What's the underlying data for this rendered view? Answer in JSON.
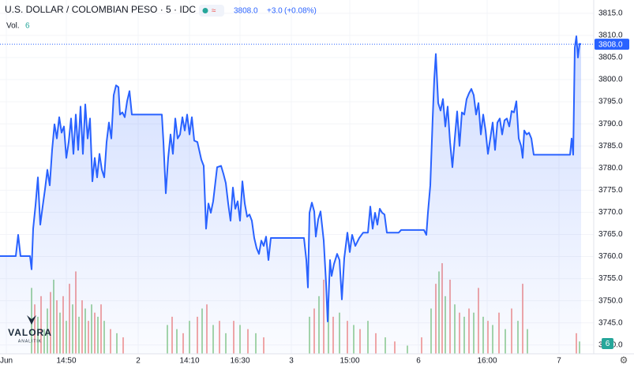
{
  "chart_data": {
    "type": "line",
    "title": "U.S. DOLLAR / COLOMBIAN PESO · 5 · IDC",
    "quote": {
      "last": "3808.0",
      "change": "+3.0",
      "change_pct": "(+0.08%)"
    },
    "volume_title": "Vol.",
    "volume_last": "6",
    "logo": {
      "name": "VALORA",
      "sub": "ANALITIK"
    },
    "color": "#2962ff",
    "grid": true,
    "xlim": [
      0,
      752
    ],
    "ylim": [
      3738,
      3818
    ],
    "yticks": [
      {
        "value": 3740,
        "label": "3740.0"
      },
      {
        "value": 3745,
        "label": "3745.0"
      },
      {
        "value": 3750,
        "label": "3750.0"
      },
      {
        "value": 3755,
        "label": "3755.0"
      },
      {
        "value": 3760,
        "label": "3760.0"
      },
      {
        "value": 3765,
        "label": "3765.0"
      },
      {
        "value": 3770,
        "label": "3770.0"
      },
      {
        "value": 3775,
        "label": "3775.0"
      },
      {
        "value": 3780,
        "label": "3780.0"
      },
      {
        "value": 3785,
        "label": "3785.0"
      },
      {
        "value": 3790,
        "label": "3790.0"
      },
      {
        "value": 3795,
        "label": "3795.0"
      },
      {
        "value": 3800,
        "label": "3800.0"
      },
      {
        "value": 3805,
        "label": "3805.0"
      },
      {
        "value": 3810,
        "label": "3810.0"
      },
      {
        "value": 3815,
        "label": "3815.0"
      }
    ],
    "xticks": [
      {
        "value": 8,
        "label": "Jun"
      },
      {
        "value": 84,
        "label": "14:50"
      },
      {
        "value": 175,
        "label": "2"
      },
      {
        "value": 240,
        "label": "14:10"
      },
      {
        "value": 304,
        "label": "16:30"
      },
      {
        "value": 369,
        "label": "3"
      },
      {
        "value": 443,
        "label": "15:00"
      },
      {
        "value": 530,
        "label": "6"
      },
      {
        "value": 617,
        "label": "16:00"
      },
      {
        "value": 708,
        "label": "7"
      }
    ],
    "series": [
      {
        "x": [
          0,
          20,
          23,
          26,
          38,
          40,
          42,
          45,
          48,
          51,
          54,
          57,
          60,
          63,
          66,
          69,
          72,
          75,
          78,
          81,
          84,
          87,
          90,
          93,
          96,
          99,
          102,
          105,
          108,
          111,
          114,
          117,
          120,
          123,
          126,
          129,
          132,
          135,
          138,
          141,
          144,
          147,
          150,
          152,
          155,
          158,
          161,
          164,
          167,
          205,
          207,
          210,
          213,
          216,
          219,
          222,
          225,
          228,
          231,
          234,
          237,
          240,
          243,
          246,
          250,
          255,
          258,
          261,
          264,
          267,
          270,
          275,
          280,
          283,
          286,
          289,
          292,
          295,
          298,
          301,
          304,
          307,
          310,
          313,
          316,
          319,
          322,
          325,
          328,
          331,
          334,
          337,
          340,
          343,
          385,
          388,
          390,
          392,
          395,
          398,
          400,
          403,
          406,
          410,
          413,
          415,
          418,
          420,
          423,
          427,
          430,
          433,
          436,
          440,
          443,
          446,
          450,
          455,
          460,
          466,
          469,
          472,
          475,
          478,
          481,
          484,
          487,
          490,
          505,
          508,
          537,
          540,
          542,
          545,
          548,
          550,
          552,
          555,
          558,
          561,
          564,
          567,
          570,
          573,
          576,
          579,
          582,
          585,
          588,
          591,
          594,
          597,
          600,
          603,
          606,
          609,
          612,
          615,
          618,
          621,
          624,
          627,
          630,
          633,
          636,
          639,
          642,
          645,
          648,
          651,
          654,
          657,
          660,
          662,
          664,
          667,
          670,
          673,
          676,
          722,
          724,
          726,
          728,
          730,
          732,
          734,
          736
        ],
        "values": [
          3760.1,
          3760.1,
          3764.9,
          3760.1,
          3760.1,
          3757.1,
          3766.3,
          3771.6,
          3777.9,
          3767.2,
          3771.3,
          3775.2,
          3779.6,
          3776.1,
          3784.1,
          3789.9,
          3786.7,
          3791.5,
          3788.0,
          3789.4,
          3782.3,
          3785.9,
          3791.2,
          3783.2,
          3792.1,
          3784.1,
          3793.9,
          3783.2,
          3794.4,
          3786.7,
          3791.2,
          3777.0,
          3782.3,
          3777.9,
          3783.2,
          3779.6,
          3777.9,
          3785.9,
          3790.3,
          3786.7,
          3796.5,
          3798.7,
          3798.3,
          3792.1,
          3792.6,
          3791.5,
          3795.1,
          3797.4,
          3792.1,
          3792.1,
          3785.9,
          3774.3,
          3782.3,
          3787.6,
          3783.2,
          3791.2,
          3786.7,
          3787.6,
          3791.5,
          3788.5,
          3792.1,
          3787.6,
          3791.5,
          3786.2,
          3785.9,
          3781.9,
          3780.5,
          3766.3,
          3772.0,
          3769.9,
          3772.5,
          3780.2,
          3780.5,
          3778.7,
          3776.6,
          3772.0,
          3768.1,
          3775.6,
          3770.8,
          3772.5,
          3768.1,
          3777.0,
          3772.0,
          3769.0,
          3769.5,
          3768.1,
          3764.2,
          3761.9,
          3760.6,
          3763.6,
          3762.4,
          3764.5,
          3759.2,
          3764.2,
          3764.2,
          3759.2,
          3753.0,
          3769.9,
          3772.2,
          3770.2,
          3764.5,
          3768.4,
          3770.2,
          3763.6,
          3753.9,
          3745.3,
          3759.2,
          3755.6,
          3758.3,
          3760.6,
          3759.2,
          3750.3,
          3759.6,
          3765.4,
          3761.0,
          3764.9,
          3762.4,
          3764.2,
          3765.4,
          3765.4,
          3771.3,
          3766.3,
          3769.9,
          3767.2,
          3770.8,
          3769.9,
          3769.5,
          3765.4,
          3765.4,
          3766.0,
          3766.0,
          3764.9,
          3769.9,
          3776.1,
          3791.2,
          3800.1,
          3805.8,
          3794.7,
          3793.0,
          3795.6,
          3789.4,
          3793.9,
          3785.9,
          3780.2,
          3786.7,
          3792.8,
          3785.0,
          3792.6,
          3792.1,
          3795.6,
          3796.9,
          3797.9,
          3796.5,
          3792.1,
          3794.7,
          3787.6,
          3792.1,
          3788.5,
          3783.2,
          3786.7,
          3790.3,
          3784.1,
          3790.3,
          3791.2,
          3787.6,
          3790.8,
          3791.2,
          3789.4,
          3792.9,
          3792.6,
          3795.1,
          3786.7,
          3785.0,
          3782.3,
          3788.5,
          3787.6,
          3788.0,
          3786.7,
          3783.0,
          3783.0,
          3786.7,
          3783.0,
          3807.2,
          3809.8,
          3805.0,
          3808.1,
          3808.0
        ]
      }
    ],
    "volume": {
      "x": [
        40,
        44,
        48,
        52,
        56,
        60,
        64,
        68,
        72,
        76,
        80,
        84,
        88,
        92,
        96,
        100,
        104,
        108,
        112,
        116,
        120,
        124,
        128,
        132,
        140,
        148,
        156,
        212,
        218,
        224,
        232,
        240,
        250,
        256,
        262,
        270,
        278,
        286,
        296,
        304,
        314,
        324,
        334,
        392,
        398,
        404,
        410,
        416,
        422,
        430,
        440,
        448,
        456,
        466,
        476,
        488,
        500,
        516,
        534,
        546,
        552,
        556,
        560,
        564,
        570,
        576,
        582,
        588,
        594,
        600,
        606,
        612,
        618,
        624,
        632,
        640,
        648,
        656,
        662,
        668,
        730,
        734
      ],
      "values": [
        80,
        60,
        45,
        70,
        30,
        55,
        75,
        90,
        65,
        50,
        70,
        40,
        85,
        60,
        100,
        45,
        65,
        55,
        40,
        60,
        50,
        45,
        60,
        40,
        30,
        25,
        20,
        35,
        45,
        30,
        25,
        40,
        45,
        55,
        60,
        35,
        40,
        25,
        40,
        35,
        30,
        25,
        20,
        45,
        55,
        70,
        90,
        60,
        45,
        50,
        40,
        35,
        30,
        40,
        25,
        20,
        15,
        10,
        20,
        55,
        85,
        100,
        110,
        70,
        90,
        60,
        50,
        45,
        55,
        50,
        80,
        45,
        40,
        35,
        50,
        30,
        55,
        40,
        85,
        30,
        25,
        15
      ],
      "colors": [
        "#a5d6a7",
        "#f4a7a5",
        "#a5d6a7",
        "#f4a7a5",
        "#a5d6a7",
        "#a5d6a7",
        "#f4a7a5",
        "#a5d6a7",
        "#f4a7a5",
        "#a5d6a7",
        "#f4a7a5",
        "#a5d6a7",
        "#f4a7a5",
        "#a5d6a7",
        "#f4a7a5",
        "#a5d6a7",
        "#f4a7a5",
        "#a5d6a7",
        "#f4a7a5",
        "#a5d6a7",
        "#f4a7a5",
        "#a5d6a7",
        "#f4a7a5",
        "#a5d6a7",
        "#f4a7a5",
        "#a5d6a7",
        "#f4a7a5",
        "#a5d6a7",
        "#f4a7a5",
        "#a5d6a7",
        "#f4a7a5",
        "#a5d6a7",
        "#f4a7a5",
        "#a5d6a7",
        "#f4a7a5",
        "#a5d6a7",
        "#f4a7a5",
        "#a5d6a7",
        "#f4a7a5",
        "#a5d6a7",
        "#f4a7a5",
        "#a5d6a7",
        "#f4a7a5",
        "#a5d6a7",
        "#f4a7a5",
        "#a5d6a7",
        "#f4a7a5",
        "#a5d6a7",
        "#f4a7a5",
        "#a5d6a7",
        "#f4a7a5",
        "#a5d6a7",
        "#f4a7a5",
        "#a5d6a7",
        "#f4a7a5",
        "#a5d6a7",
        "#f4a7a5",
        "#a5d6a7",
        "#f4a7a5",
        "#a5d6a7",
        "#f4a7a5",
        "#a5d6a7",
        "#f4a7a5",
        "#a5d6a7",
        "#f4a7a5",
        "#a5d6a7",
        "#f4a7a5",
        "#a5d6a7",
        "#f4a7a5",
        "#a5d6a7",
        "#f4a7a5",
        "#a5d6a7",
        "#f4a7a5",
        "#a5d6a7",
        "#f4a7a5",
        "#a5d6a7",
        "#f4a7a5",
        "#a5d6a7",
        "#f4a7a5",
        "#a5d6a7",
        "#f4a7a5",
        "#a5d6a7"
      ]
    }
  }
}
